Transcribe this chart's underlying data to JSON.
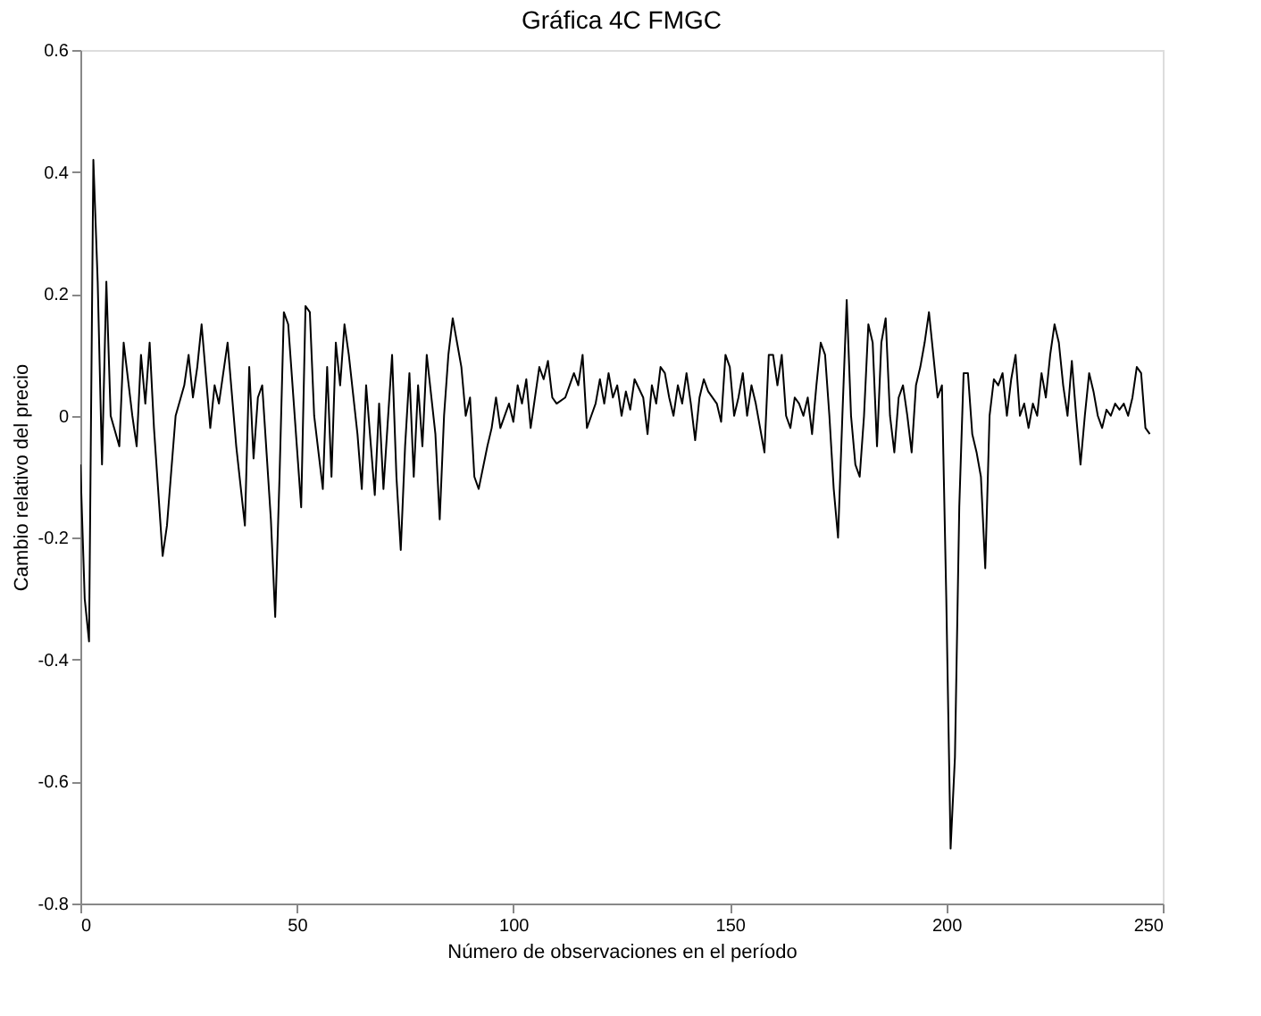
{
  "chart_data": {
    "type": "line",
    "title": "Gráfica 4C FMGC",
    "xlabel": "Número de observaciones en el período",
    "ylabel": "Cambio relativo del precio",
    "x": [
      0,
      1,
      2,
      3,
      4,
      5,
      6,
      7,
      9,
      10,
      12,
      13,
      14,
      15,
      16,
      17,
      19,
      20,
      22,
      24,
      25,
      26,
      27,
      28,
      30,
      31,
      32,
      34,
      36,
      38,
      39,
      40,
      41,
      42,
      44,
      45,
      46,
      47,
      48,
      50,
      51,
      52,
      53,
      54,
      56,
      57,
      58,
      59,
      60,
      61,
      62,
      64,
      65,
      66,
      68,
      69,
      70,
      72,
      73,
      74,
      75,
      76,
      77,
      78,
      79,
      80,
      82,
      83,
      84,
      85,
      86,
      87,
      88,
      89,
      90,
      91,
      92,
      94,
      95,
      96,
      97,
      99,
      100,
      101,
      102,
      103,
      104,
      106,
      107,
      108,
      109,
      110,
      112,
      113,
      114,
      115,
      116,
      117,
      118,
      119,
      120,
      121,
      122,
      123,
      124,
      125,
      126,
      127,
      128,
      130,
      131,
      132,
      133,
      134,
      135,
      136,
      137,
      138,
      139,
      140,
      141,
      142,
      143,
      144,
      145,
      147,
      148,
      149,
      150,
      151,
      152,
      153,
      154,
      155,
      156,
      157,
      158,
      159,
      160,
      161,
      162,
      163,
      164,
      165,
      166,
      167,
      168,
      169,
      170,
      171,
      172,
      173,
      174,
      175,
      176,
      177,
      178,
      179,
      180,
      181,
      182,
      183,
      184,
      185,
      186,
      187,
      188,
      189,
      190,
      191,
      192,
      193,
      194,
      195,
      196,
      197,
      198,
      199,
      200,
      201,
      202,
      203,
      204,
      205,
      206,
      207,
      208,
      209,
      210,
      211,
      212,
      213,
      214,
      215,
      216,
      217,
      218,
      219,
      220,
      221,
      222,
      223,
      224,
      225,
      226,
      227,
      228,
      229,
      230,
      231,
      232,
      233,
      234,
      235,
      236,
      237,
      238,
      239,
      240,
      241,
      242,
      243,
      244,
      245,
      246,
      247
    ],
    "series": [
      {
        "color": "#000000",
        "values": [
          -0.08,
          -0.3,
          -0.37,
          0.42,
          0.22,
          -0.08,
          0.22,
          0.0,
          -0.05,
          0.12,
          0.0,
          -0.05,
          0.1,
          0.02,
          0.12,
          -0.02,
          -0.23,
          -0.18,
          0.0,
          0.05,
          0.1,
          0.03,
          0.08,
          0.15,
          -0.02,
          0.05,
          0.02,
          0.12,
          -0.05,
          -0.18,
          0.08,
          -0.07,
          0.03,
          0.05,
          -0.17,
          -0.33,
          -0.1,
          0.17,
          0.15,
          -0.05,
          -0.15,
          0.18,
          0.17,
          0.0,
          -0.12,
          0.08,
          -0.1,
          0.12,
          0.05,
          0.15,
          0.1,
          -0.03,
          -0.12,
          0.05,
          -0.13,
          0.02,
          -0.12,
          0.1,
          -0.1,
          -0.22,
          -0.05,
          0.07,
          -0.1,
          0.05,
          -0.05,
          0.1,
          -0.03,
          -0.17,
          0.0,
          0.1,
          0.16,
          0.12,
          0.08,
          0.0,
          0.03,
          -0.1,
          -0.12,
          -0.05,
          -0.02,
          0.03,
          -0.02,
          0.02,
          -0.01,
          0.05,
          0.02,
          0.06,
          -0.02,
          0.08,
          0.06,
          0.09,
          0.03,
          0.02,
          0.03,
          0.05,
          0.07,
          0.05,
          0.1,
          -0.02,
          0.0,
          0.02,
          0.06,
          0.02,
          0.07,
          0.03,
          0.05,
          0.0,
          0.04,
          0.01,
          0.06,
          0.03,
          -0.03,
          0.05,
          0.02,
          0.08,
          0.07,
          0.03,
          0.0,
          0.05,
          0.02,
          0.07,
          0.02,
          -0.04,
          0.03,
          0.06,
          0.04,
          0.02,
          -0.01,
          0.1,
          0.08,
          0.0,
          0.03,
          0.07,
          0.0,
          0.05,
          0.02,
          -0.02,
          -0.06,
          0.1,
          0.1,
          0.05,
          0.1,
          0.0,
          -0.02,
          0.03,
          0.02,
          0.0,
          0.03,
          -0.03,
          0.05,
          0.12,
          0.1,
          0.0,
          -0.12,
          -0.2,
          0.0,
          0.19,
          0.0,
          -0.08,
          -0.1,
          0.0,
          0.15,
          0.12,
          -0.05,
          0.12,
          0.16,
          0.0,
          -0.06,
          0.03,
          0.05,
          0.0,
          -0.06,
          0.05,
          0.08,
          0.12,
          0.17,
          0.1,
          0.03,
          0.05,
          -0.3,
          -0.71,
          -0.56,
          -0.15,
          0.07,
          0.07,
          -0.03,
          -0.06,
          -0.1,
          -0.25,
          0.0,
          0.06,
          0.05,
          0.07,
          0.0,
          0.06,
          0.1,
          0.0,
          0.02,
          -0.02,
          0.02,
          0.0,
          0.07,
          0.03,
          0.1,
          0.15,
          0.12,
          0.05,
          0.0,
          0.09,
          0.0,
          -0.08,
          0.0,
          0.07,
          0.04,
          0.0,
          -0.02,
          0.01,
          0.0,
          0.02,
          0.01,
          0.02,
          0.0,
          0.03,
          0.08,
          0.07,
          -0.02,
          -0.03
        ]
      }
    ],
    "xlim": [
      0,
      250
    ],
    "xticks": [
      0,
      50,
      100,
      150,
      200,
      250
    ],
    "ylim": [
      -0.8,
      0.6
    ],
    "yticks": [
      -0.8,
      -0.6,
      -0.4,
      -0.2,
      0,
      0.2,
      0.4,
      0.6
    ],
    "grid": false,
    "marker": "none",
    "line_style": "solid"
  }
}
